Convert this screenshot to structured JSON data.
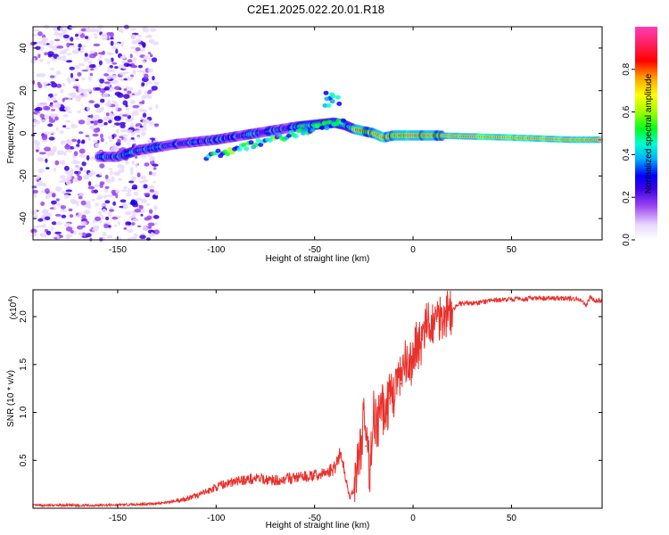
{
  "title": "C2E1.2025.022.20.01.R18",
  "chart_data": [
    {
      "type": "heatmap",
      "xlabel": "Height of straight line (km)",
      "ylabel": "Frequency (Hz)",
      "xlim": [
        -193,
        96
      ],
      "ylim": [
        -50,
        50
      ],
      "xticks": [
        -150,
        -100,
        -50,
        0,
        50
      ],
      "xtick_labels": [
        "-150",
        "-100",
        "-50",
        "0",
        "50"
      ],
      "yticks": [
        -40,
        -20,
        0,
        20,
        40
      ],
      "ytick_labels": [
        "-40",
        "-20",
        "0",
        "20",
        "40"
      ],
      "grid": false,
      "colorbar": {
        "label": "Normalized spectral amplitude",
        "range": [
          0,
          1
        ],
        "ticks": [
          0.0,
          0.2,
          0.4,
          0.6,
          0.8
        ],
        "tick_labels": [
          "0.0",
          "0.2",
          "0.4",
          "0.6",
          "0.8"
        ],
        "colormap": [
          "#ffffff",
          "#e9d9ff",
          "#9a44f0",
          "#3a00e8",
          "#0000ff",
          "#00b0ff",
          "#00ffd0",
          "#00ff20",
          "#a0ff00",
          "#ffff00",
          "#ffa000",
          "#ff0000",
          "#ff2060",
          "#ff3cb4"
        ]
      },
      "ridge_center_hz": {
        "x": [
          -150,
          -140,
          -120,
          -100,
          -80,
          -60,
          -50,
          -40,
          -35,
          -30,
          -20,
          -15,
          -10,
          0,
          10,
          50,
          80,
          95
        ],
        "y": [
          -11,
          -8,
          -5,
          -3,
          0,
          3,
          4,
          5,
          4,
          2,
          0,
          -2,
          -1,
          -1,
          -1,
          -2,
          -3,
          -3
        ]
      }
    },
    {
      "type": "line",
      "xlabel": "Height of straight line (km)",
      "ylabel": "SNR (10 * v/v)",
      "multiplier_label": "(x10",
      "multiplier_exp": "4",
      "multiplier_close": ")",
      "xlim": [
        -193,
        96
      ],
      "ylim": [
        0,
        2.28
      ],
      "xticks": [
        -150,
        -100,
        -50,
        0,
        50
      ],
      "xtick_labels": [
        "-150",
        "-100",
        "-50",
        "0",
        "50"
      ],
      "yticks": [
        0.5,
        1.0,
        1.5,
        2.0
      ],
      "ytick_labels": [
        "0.5",
        "1.0",
        "1.5",
        "2.0"
      ],
      "grid": false,
      "series": [
        {
          "name": "SNR",
          "color": "#e8312b",
          "x": [
            -193,
            -180,
            -170,
            -160,
            -150,
            -140,
            -130,
            -125,
            -120,
            -115,
            -110,
            -105,
            -100,
            -95,
            -90,
            -85,
            -80,
            -75,
            -70,
            -65,
            -60,
            -55,
            -50,
            -45,
            -40,
            -37,
            -35,
            -32,
            -30,
            -28,
            -26,
            -25,
            -24,
            -22,
            -20,
            -18,
            -16,
            -14,
            -12,
            -10,
            -8,
            -6,
            -4,
            -2,
            0,
            2,
            4,
            6,
            8,
            10,
            12,
            14,
            16,
            18,
            20,
            22,
            25,
            30,
            35,
            40,
            50,
            60,
            70,
            80,
            85,
            88,
            90,
            92,
            95
          ],
          "y": [
            0.03,
            0.03,
            0.03,
            0.03,
            0.035,
            0.04,
            0.05,
            0.06,
            0.08,
            0.1,
            0.13,
            0.17,
            0.22,
            0.26,
            0.28,
            0.3,
            0.31,
            0.3,
            0.29,
            0.3,
            0.32,
            0.33,
            0.34,
            0.36,
            0.42,
            0.58,
            0.4,
            0.1,
            0.2,
            0.45,
            0.7,
            1.05,
            0.65,
            0.4,
            1.0,
            0.85,
            1.05,
            1.0,
            1.15,
            1.2,
            1.35,
            1.3,
            1.5,
            1.4,
            1.6,
            1.75,
            1.7,
            1.85,
            1.9,
            1.95,
            1.95,
            2.05,
            2.0,
            2.1,
            2.05,
            2.12,
            2.14,
            2.14,
            2.15,
            2.17,
            2.18,
            2.19,
            2.19,
            2.19,
            2.18,
            2.12,
            2.2,
            2.17,
            2.17
          ]
        }
      ]
    }
  ]
}
